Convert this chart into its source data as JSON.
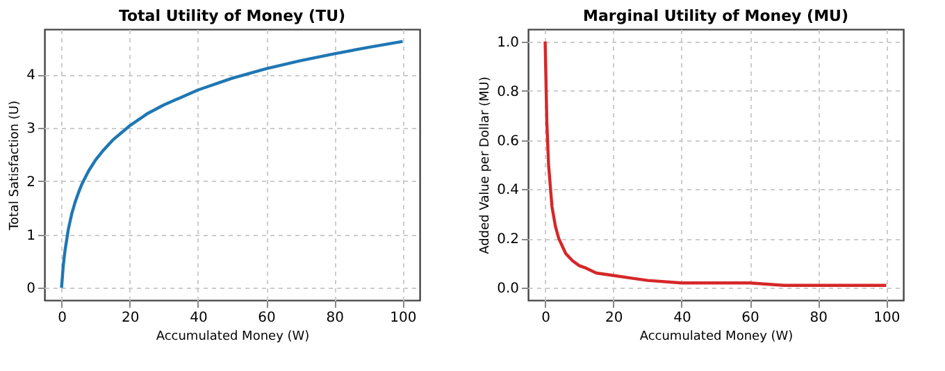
{
  "chart_data": [
    {
      "type": "line",
      "title": "Total Utility of Money (TU)",
      "xlabel": "Accumulated Money (W)",
      "ylabel": "Total Satisfaction (U)",
      "x": [
        0,
        0.5,
        1,
        2,
        3,
        4,
        5,
        6,
        8,
        10,
        12,
        15,
        20,
        25,
        30,
        40,
        50,
        60,
        70,
        80,
        90,
        100
      ],
      "series": [
        {
          "color": "#1f77b4",
          "values": [
            0,
            0.41,
            0.69,
            1.1,
            1.39,
            1.61,
            1.79,
            1.95,
            2.2,
            2.4,
            2.56,
            2.77,
            3.04,
            3.26,
            3.43,
            3.71,
            3.93,
            4.11,
            4.26,
            4.39,
            4.51,
            4.62
          ]
        }
      ],
      "xlim": [
        -5,
        105
      ],
      "xticks": [
        0,
        20,
        40,
        60,
        80,
        100
      ],
      "ylim": [
        -0.23,
        4.85
      ],
      "yticks": [
        0,
        1,
        2,
        3,
        4
      ],
      "grid": true,
      "line_style": "solid"
    },
    {
      "type": "line",
      "title": "Marginal Utility of Money (MU)",
      "xlabel": "Accumulated Money (W)",
      "ylabel": "Added Value per Dollar (MU)",
      "x": [
        0,
        0.5,
        1,
        2,
        3,
        4,
        5,
        6,
        8,
        10,
        12,
        15,
        20,
        25,
        30,
        40,
        50,
        60,
        70,
        80,
        90,
        100
      ],
      "series": [
        {
          "color": "#d62728",
          "values": [
            1,
            0.67,
            0.5,
            0.33,
            0.25,
            0.2,
            0.17,
            0.14,
            0.11,
            0.09,
            0.08,
            0.06,
            0.05,
            0.04,
            0.03,
            0.02,
            0.02,
            0.02,
            0.01,
            0.01,
            0.01,
            0.01
          ]
        }
      ],
      "xlim": [
        -5,
        105
      ],
      "xticks": [
        0,
        20,
        40,
        60,
        80,
        100
      ],
      "ylim": [
        -0.05,
        1.05
      ],
      "yticks": [
        {
          "value": 0,
          "label": "0.0"
        },
        {
          "value": 0.2,
          "label": "0.2"
        },
        {
          "value": 0.4,
          "label": "0.4"
        },
        {
          "value": 0.6,
          "label": "0.6"
        },
        {
          "value": 0.8,
          "label": "0.8"
        },
        {
          "value": 1,
          "label": "1.0"
        }
      ],
      "grid": true,
      "line_style": "solid"
    }
  ]
}
